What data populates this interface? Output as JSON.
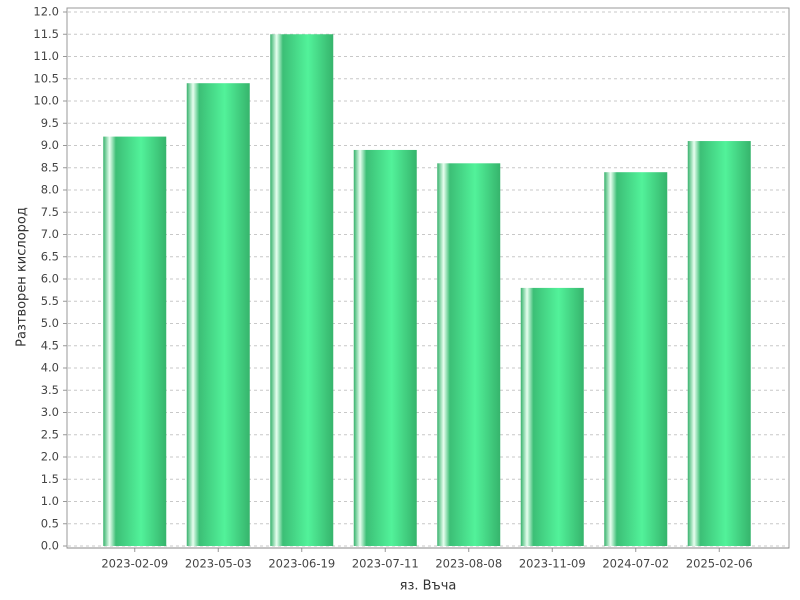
{
  "chart_data": {
    "type": "bar",
    "x_label": "яз. Въча",
    "y_label": "Разтворен кислород",
    "categories": [
      "2023-02-09",
      "2023-05-03",
      "2023-06-19",
      "2023-07-11",
      "2023-08-08",
      "2023-11-09",
      "2024-07-02",
      "2025-02-06"
    ],
    "values": [
      9.2,
      10.4,
      11.5,
      8.9,
      8.6,
      5.8,
      8.4,
      9.1
    ],
    "color": "#52f29a",
    "ylim": [
      0,
      12
    ],
    "yticks": [
      {
        "value": 0,
        "label": "0.0"
      },
      {
        "value": 0.5,
        "label": "0.5"
      },
      {
        "value": 1,
        "label": "1.0"
      },
      {
        "value": 1.5,
        "label": "1.5"
      },
      {
        "value": 2,
        "label": "2.0"
      },
      {
        "value": 2.5,
        "label": "2.5"
      },
      {
        "value": 3,
        "label": "3.0"
      },
      {
        "value": 3.5,
        "label": "3.5"
      },
      {
        "value": 4,
        "label": "4.0"
      },
      {
        "value": 4.5,
        "label": "4.5"
      },
      {
        "value": 5,
        "label": "5.0"
      },
      {
        "value": 5.5,
        "label": "5.5"
      },
      {
        "value": 6,
        "label": "6.0"
      },
      {
        "value": 6.5,
        "label": "6.5"
      },
      {
        "value": 7,
        "label": "7.0"
      },
      {
        "value": 7.5,
        "label": "7.5"
      },
      {
        "value": 8,
        "label": "8.0"
      },
      {
        "value": 8.5,
        "label": "8.5"
      },
      {
        "value": 9,
        "label": "9.0"
      },
      {
        "value": 9.5,
        "label": "9.5"
      },
      {
        "value": 10,
        "label": "10.0"
      },
      {
        "value": 10.5,
        "label": "10.5"
      },
      {
        "value": 11,
        "label": "11.0"
      },
      {
        "value": 11.5,
        "label": "11.5"
      },
      {
        "value": 12,
        "label": "12.0"
      }
    ],
    "grid": true
  }
}
